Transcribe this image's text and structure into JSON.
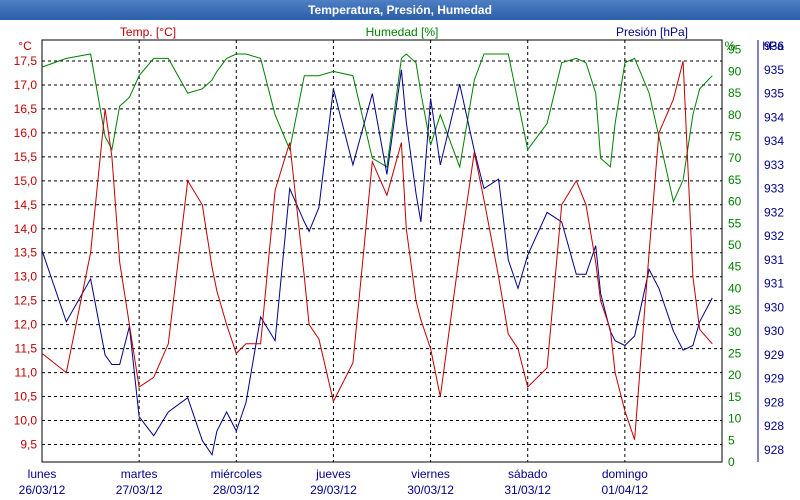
{
  "window": {
    "title": "Temperatura, Presión, Humedad"
  },
  "chart_data": {
    "type": "line",
    "title": "Temperatura, Presión, Humedad",
    "colors": {
      "temperature": "#c00000",
      "humidity": "#008000",
      "pressure": "#00008b",
      "grid": "#000000"
    },
    "series_labels": {
      "temperature": "Temp. [°C]",
      "humidity": "Humedad [%]",
      "pressure": "Presión [hPa]"
    },
    "axis_units": {
      "temperature": "°C",
      "humidity": "%",
      "pressure": "hPa"
    },
    "temperature_axis": {
      "ticks": [
        "9,5",
        "10,0",
        "10,5",
        "11,0",
        "11,5",
        "12,0",
        "12,5",
        "13,0",
        "13,5",
        "14,0",
        "14,5",
        "15,0",
        "15,5",
        "16,0",
        "16,5",
        "17,0",
        "17,5"
      ]
    },
    "humidity_axis": {
      "ticks": [
        "0",
        "5",
        "10",
        "15",
        "20",
        "25",
        "30",
        "35",
        "40",
        "45",
        "50",
        "55",
        "60",
        "65",
        "70",
        "75",
        "80",
        "85",
        "90",
        "95"
      ]
    },
    "pressure_axis": {
      "ticks": [
        "928",
        "928",
        "928",
        "929",
        "929",
        "930",
        "930",
        "931",
        "931",
        "932",
        "932",
        "933",
        "933",
        "934",
        "934",
        "935",
        "935",
        "936"
      ]
    },
    "days": [
      {
        "day": "lunes",
        "date": "26/03/12"
      },
      {
        "day": "martes",
        "date": "27/03/12"
      },
      {
        "day": "miércoles",
        "date": "28/03/12"
      },
      {
        "day": "jueves",
        "date": "29/03/12"
      },
      {
        "day": "viernes",
        "date": "30/03/12"
      },
      {
        "day": "sábado",
        "date": "31/03/12"
      },
      {
        "day": "domingo",
        "date": "01/04/12"
      }
    ],
    "x_days": [
      0,
      0.25,
      0.5,
      0.65,
      0.72,
      0.8,
      0.9,
      1.0,
      1.15,
      1.3,
      1.5,
      1.65,
      1.75,
      1.8,
      1.9,
      2.0,
      2.1,
      2.25,
      2.4,
      2.55,
      2.7,
      2.75,
      2.85,
      3.0,
      3.2,
      3.4,
      3.55,
      3.7,
      3.75,
      3.85,
      3.9,
      4.0,
      4.1,
      4.3,
      4.45,
      4.55,
      4.7,
      4.8,
      4.9,
      5.0,
      5.2,
      5.35,
      5.5,
      5.6,
      5.7,
      5.75,
      5.85,
      5.9,
      6.0,
      6.1,
      6.25,
      6.35,
      6.5,
      6.6,
      6.7,
      6.77,
      6.9
    ],
    "temperature": [
      11.4,
      11.0,
      13.5,
      16.5,
      15.5,
      13.3,
      12.0,
      10.7,
      10.9,
      11.6,
      15.0,
      14.5,
      13.2,
      12.7,
      12.0,
      11.4,
      11.6,
      11.6,
      14.8,
      15.8,
      13.0,
      12.0,
      11.7,
      10.4,
      11.2,
      15.4,
      14.7,
      15.8,
      14.0,
      12.5,
      12.1,
      11.5,
      10.5,
      13.5,
      15.6,
      14.6,
      13.0,
      11.8,
      11.5,
      10.7,
      11.1,
      14.5,
      15.0,
      14.5,
      13.3,
      12.5,
      11.9,
      11.0,
      10.2,
      9.6,
      13.5,
      16.0,
      16.7,
      17.5,
      13.0,
      11.9,
      11.6
    ],
    "humidity": [
      91,
      93,
      94,
      75,
      72,
      82,
      84,
      89,
      93,
      93,
      85,
      86,
      88,
      90,
      93,
      94,
      94,
      93,
      80,
      72,
      89,
      89,
      89,
      90,
      89,
      70,
      68,
      93,
      94,
      92,
      85,
      73,
      80,
      68,
      88,
      94,
      94,
      94,
      83,
      72,
      78,
      92,
      93,
      92,
      85,
      70,
      68,
      78,
      92,
      93,
      85,
      75,
      60,
      65,
      80,
      86,
      89
    ],
    "pressure": [
      932.2,
      930.7,
      931.6,
      930.0,
      929.8,
      929.8,
      930.6,
      928.7,
      928.3,
      928.8,
      929.1,
      928.2,
      927.9,
      928.4,
      928.8,
      928.4,
      929.0,
      930.8,
      930.3,
      933.5,
      932.8,
      932.6,
      933.1,
      935.6,
      934.0,
      935.5,
      933.8,
      936.0,
      934.9,
      933.4,
      932.8,
      935.4,
      934.0,
      935.7,
      934.3,
      933.5,
      933.7,
      932.0,
      931.4,
      932.1,
      933.0,
      932.8,
      931.7,
      931.7,
      932.3,
      931.3,
      930.5,
      930.3,
      930.2,
      930.4,
      931.8,
      931.4,
      930.5,
      930.1,
      930.2,
      930.7,
      931.2
    ]
  }
}
